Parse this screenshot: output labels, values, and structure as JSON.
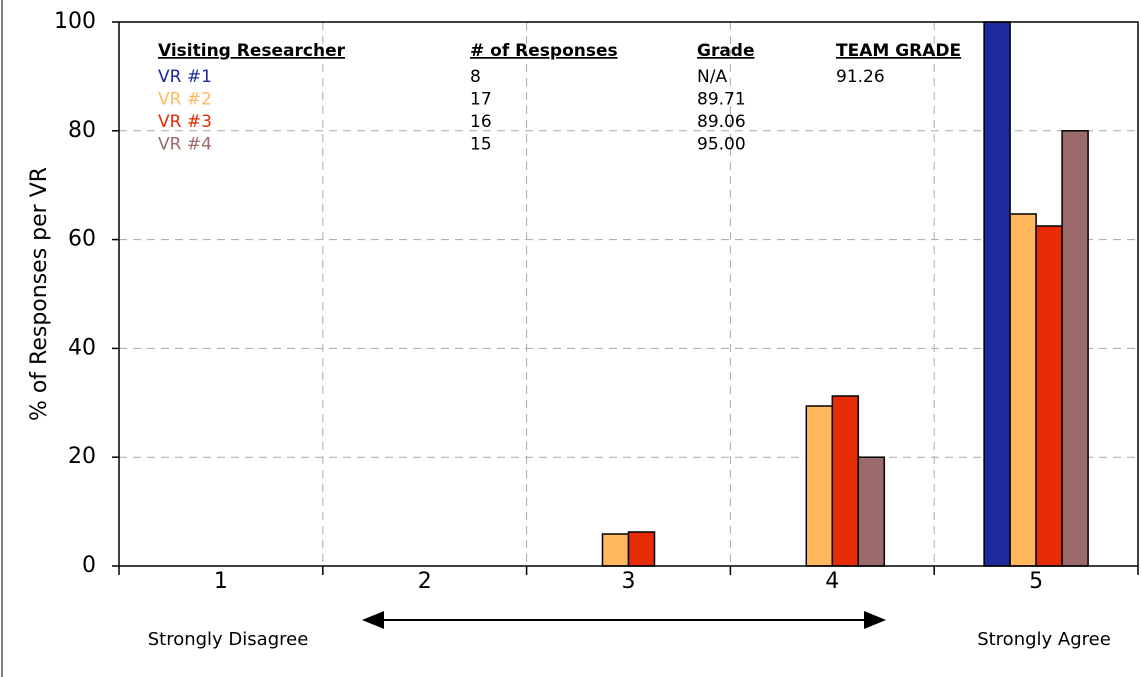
{
  "chart_data": {
    "type": "bar",
    "y_label": "% of Responses per VR",
    "categories": [
      "1",
      "2",
      "3",
      "4",
      "5"
    ],
    "annotations": {
      "left": "Strongly Disagree",
      "right": "Strongly Agree"
    },
    "series": [
      {
        "name": "VR #1",
        "color": "#1c2a9e",
        "responses": 8,
        "grade": "N/A",
        "values": [
          0,
          0,
          0,
          0,
          100
        ]
      },
      {
        "name": "VR #2",
        "color": "#ffb95c",
        "responses": 17,
        "grade": "89.71",
        "values": [
          0,
          0,
          5.88,
          29.41,
          64.71
        ]
      },
      {
        "name": "VR #3",
        "color": "#e62b05",
        "responses": 16,
        "grade": "89.06",
        "values": [
          0,
          0,
          6.25,
          31.25,
          62.5
        ]
      },
      {
        "name": "VR #4",
        "color": "#9b6a6b",
        "responses": 15,
        "grade": "95.00",
        "values": [
          0,
          0,
          0,
          20,
          80
        ]
      }
    ],
    "legend_headers": [
      "Visiting Researcher",
      "# of Responses",
      "Grade",
      "TEAM GRADE"
    ],
    "team_grade": 91.26,
    "ylim": [
      0,
      100
    ],
    "yticks": [
      0,
      20,
      40,
      60,
      80,
      100
    ],
    "grid": true
  }
}
